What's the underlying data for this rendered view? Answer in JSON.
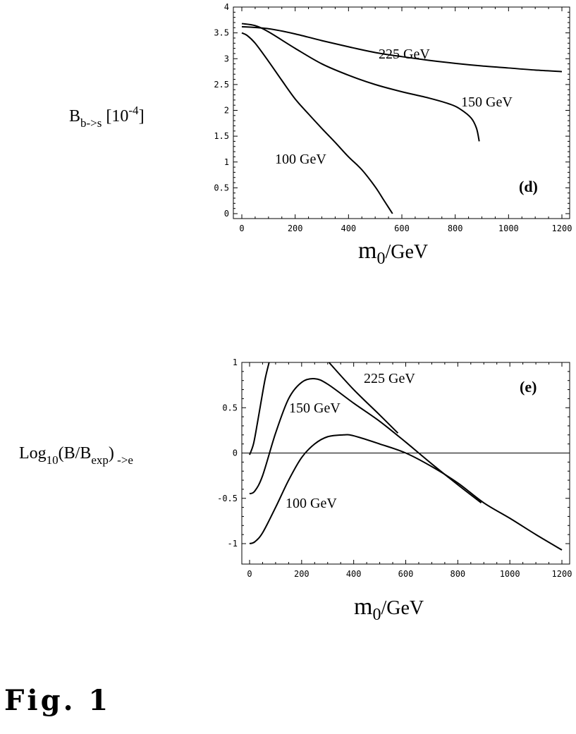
{
  "figure_caption": "Fig. 1",
  "chart_data": [
    {
      "type": "line",
      "panel_label": "(d)",
      "xlabel": {
        "main": "m",
        "sub": "0",
        "rest": "/GeV"
      },
      "ylabel": {
        "main": "B",
        "sub": "b->s",
        "mid": "  [10",
        "sup": "-4",
        "end": "]"
      },
      "xlim": [
        0,
        1200
      ],
      "ylim": [
        0,
        4
      ],
      "xticks": [
        "0",
        "200",
        "400",
        "600",
        "800",
        "1000",
        "1200"
      ],
      "yticks": [
        "0",
        "0.5",
        "1",
        "1.5",
        "2",
        "2.5",
        "3",
        "3.5",
        "4"
      ],
      "grid": false,
      "series": [
        {
          "name": "225 GeV",
          "x": [
            0,
            100,
            200,
            300,
            400,
            500,
            600,
            700,
            800,
            900,
            1000,
            1100,
            1200
          ],
          "y": [
            3.62,
            3.58,
            3.48,
            3.35,
            3.23,
            3.12,
            3.04,
            2.97,
            2.91,
            2.86,
            2.82,
            2.78,
            2.75
          ]
        },
        {
          "name": "150 GeV",
          "x": [
            0,
            50,
            100,
            200,
            300,
            400,
            500,
            600,
            700,
            780,
            820,
            860,
            880,
            890
          ],
          "y": [
            3.68,
            3.64,
            3.52,
            3.2,
            2.9,
            2.68,
            2.5,
            2.36,
            2.24,
            2.12,
            2.02,
            1.85,
            1.65,
            1.4
          ]
        },
        {
          "name": "100 GeV",
          "x": [
            0,
            20,
            50,
            100,
            150,
            200,
            250,
            300,
            350,
            400,
            450,
            500,
            530,
            550,
            565
          ],
          "y": [
            3.5,
            3.45,
            3.3,
            2.95,
            2.58,
            2.22,
            1.93,
            1.65,
            1.38,
            1.1,
            0.85,
            0.52,
            0.28,
            0.12,
            0.0
          ]
        }
      ]
    },
    {
      "type": "line",
      "panel_label": "(e)",
      "xlabel": {
        "main": "m",
        "sub": "0",
        "rest": "/GeV"
      },
      "ylabel": {
        "main": "Log",
        "sub": "10",
        "mid": "(B/B",
        "sub2": "exp",
        "end": ")",
        "tail": " ->e"
      },
      "xlim": [
        0,
        1200
      ],
      "ylim": [
        -1,
        1
      ],
      "xticks": [
        "0",
        "200",
        "400",
        "600",
        "800",
        "1000",
        "1200"
      ],
      "yticks": [
        "-1",
        "-0.5",
        "0",
        "0.5",
        "1"
      ],
      "grid": false,
      "zero_line": true,
      "series": [
        {
          "name": "225 GeV",
          "x": [
            0,
            15,
            30,
            45,
            60,
            75
          ],
          "y": [
            -0.02,
            0.1,
            0.33,
            0.58,
            0.82,
            1.0
          ]
        },
        {
          "name": "225 GeV",
          "x": [
            305,
            400,
            500,
            570
          ],
          "y": [
            1.0,
            0.7,
            0.42,
            0.22
          ]
        },
        {
          "name": "150 GeV",
          "x": [
            0,
            20,
            50,
            100,
            150,
            200,
            250,
            300,
            400,
            500,
            600,
            700,
            800,
            890
          ],
          "y": [
            -0.45,
            -0.42,
            -0.25,
            0.22,
            0.6,
            0.78,
            0.82,
            0.76,
            0.55,
            0.35,
            0.12,
            -0.12,
            -0.35,
            -0.55
          ]
        },
        {
          "name": "100 GeV",
          "x": [
            0,
            20,
            50,
            100,
            150,
            200,
            250,
            300,
            360,
            400,
            500,
            600,
            700,
            800,
            900,
            1000,
            1100,
            1200
          ],
          "y": [
            -1.0,
            -0.98,
            -0.88,
            -0.6,
            -0.3,
            -0.05,
            0.1,
            0.18,
            0.2,
            0.19,
            0.1,
            0.0,
            -0.15,
            -0.33,
            -0.55,
            -0.72,
            -0.9,
            -1.07
          ]
        }
      ],
      "curve_labels": [
        "225 GeV",
        "150 GeV",
        "100 GeV"
      ]
    }
  ]
}
